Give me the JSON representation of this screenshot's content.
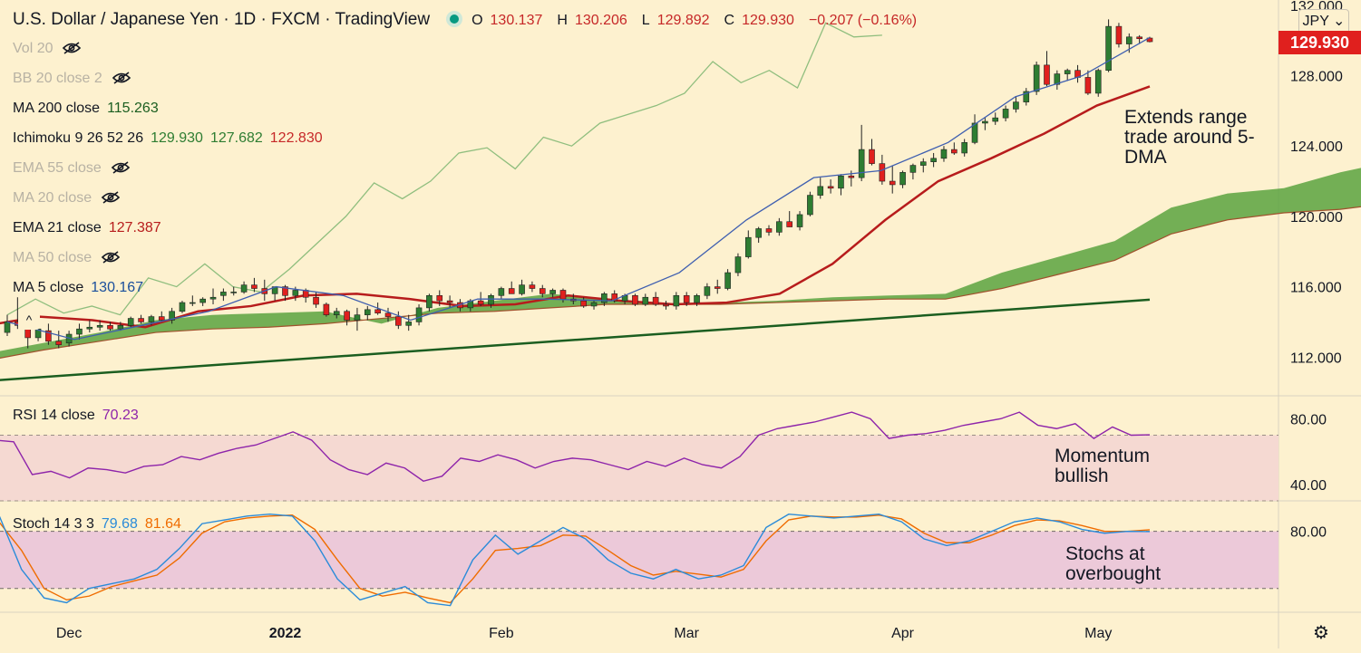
{
  "header": {
    "symbol": "U.S. Dollar / Japanese Yen · 1D · FXCM · TradingView",
    "open_label": "O",
    "open": "130.137",
    "high_label": "H",
    "high": "130.206",
    "low_label": "L",
    "low": "129.892",
    "close_label": "C",
    "close": "129.930",
    "change": "−0.207 (−0.16%)"
  },
  "currency_selector": "JPY",
  "last_price_badge": "129.930",
  "legend": [
    {
      "label": "Vol 20",
      "value": "",
      "hidden": true
    },
    {
      "label": "BB 20 close 2",
      "value": "",
      "hidden": true
    },
    {
      "label": "MA 200 close",
      "value": "115.263",
      "hidden": false,
      "color": "#1b5e20"
    },
    {
      "label": "Ichimoku 9 26 52 26",
      "value": "129.930",
      "value2": "127.682",
      "value3": "122.830",
      "hidden": false,
      "color": "#2e7d32",
      "color3": "#c62828"
    },
    {
      "label": "EMA 55 close",
      "value": "",
      "hidden": true
    },
    {
      "label": "MA 20 close",
      "value": "",
      "hidden": true
    },
    {
      "label": "EMA 21 close",
      "value": "127.387",
      "hidden": false,
      "color": "#b71c1c"
    },
    {
      "label": "MA 50 close",
      "value": "",
      "hidden": true
    },
    {
      "label": "MA 5 close",
      "value": "130.167",
      "hidden": false,
      "color": "#1a4f9c"
    }
  ],
  "annotations": {
    "price": "Extends range trade around 5-DMA",
    "rsi": "Momentum bullish",
    "stoch": "Stochs at overbought"
  },
  "rsi_legend": {
    "label": "RSI 14 close",
    "value": "70.23"
  },
  "stoch_legend": {
    "label": "Stoch 14 3 3",
    "k": "79.68",
    "d": "81.64"
  },
  "colors": {
    "background": "#fdf1cf",
    "bull": "#2e7d32",
    "bear": "#e0201e",
    "ma200": "#1b5e20",
    "ema21": "#b71c1c",
    "ma5": "#3f5fb0",
    "cloud": "#5ba33f",
    "chikou": "#8fbe7e",
    "rsi": "#8e24aa",
    "rsi_band": "#f5d9d2",
    "stoch_band": "#ecc9d9",
    "stoch_k": "#2a8bd9",
    "stoch_d": "#ef6c00"
  },
  "chart_data": {
    "type": "candlestick",
    "price_axis": {
      "ticks": [
        "112.000",
        "116.000",
        "120.000",
        "124.000",
        "128.000",
        "132.000"
      ],
      "ylim": [
        109.8,
        132.3
      ]
    },
    "rsi_axis": {
      "ticks": [
        "40.00",
        "80.00"
      ],
      "ylim": [
        30,
        94
      ],
      "band": [
        30,
        70
      ]
    },
    "stoch_axis": {
      "ticks": [
        "80.00"
      ],
      "ylim": [
        -5,
        112
      ],
      "band": [
        20,
        80
      ]
    },
    "time_axis": {
      "labels": [
        "Dec",
        "2022",
        "Feb",
        "Mar",
        "Apr",
        "May"
      ],
      "label_indices": [
        6,
        27,
        48,
        66,
        87,
        106
      ]
    },
    "candles": [
      [
        113.4,
        114.4,
        113.2,
        114.0
      ],
      [
        114.0,
        115.4,
        113.6,
        113.8
      ],
      [
        113.6,
        114.6,
        112.5,
        113.1
      ],
      [
        113.1,
        114.0,
        112.9,
        113.6
      ],
      [
        113.5,
        113.9,
        112.7,
        112.9
      ],
      [
        112.9,
        113.5,
        112.5,
        112.7
      ],
      [
        112.8,
        113.5,
        112.6,
        113.3
      ],
      [
        113.3,
        113.9,
        113.0,
        113.6
      ],
      [
        113.6,
        114.1,
        113.4,
        113.7
      ],
      [
        113.7,
        114.1,
        113.5,
        113.8
      ],
      [
        113.8,
        114.0,
        113.5,
        113.6
      ],
      [
        113.6,
        114.0,
        113.5,
        113.8
      ],
      [
        113.8,
        114.3,
        113.7,
        114.2
      ],
      [
        114.2,
        114.4,
        113.9,
        114.0
      ],
      [
        114.0,
        114.4,
        113.8,
        114.3
      ],
      [
        114.3,
        114.6,
        114.0,
        114.1
      ],
      [
        114.1,
        114.8,
        113.9,
        114.6
      ],
      [
        114.6,
        115.2,
        114.5,
        115.1
      ],
      [
        115.1,
        115.5,
        114.9,
        115.1
      ],
      [
        115.1,
        115.4,
        114.9,
        115.3
      ],
      [
        115.3,
        115.9,
        115.0,
        115.4
      ],
      [
        115.5,
        115.9,
        115.2,
        115.7
      ],
      [
        115.7,
        116.0,
        115.5,
        115.7
      ],
      [
        115.7,
        116.3,
        115.6,
        116.1
      ],
      [
        116.1,
        116.5,
        115.7,
        115.9
      ],
      [
        115.9,
        116.4,
        115.2,
        115.6
      ],
      [
        115.6,
        116.0,
        115.2,
        116.0
      ],
      [
        116.0,
        116.1,
        115.2,
        115.5
      ],
      [
        115.5,
        116.0,
        115.2,
        115.8
      ],
      [
        115.8,
        115.9,
        115.1,
        115.4
      ],
      [
        115.4,
        115.7,
        114.8,
        115.0
      ],
      [
        115.0,
        115.1,
        114.3,
        114.4
      ],
      [
        114.4,
        114.8,
        114.2,
        114.6
      ],
      [
        114.6,
        114.7,
        113.8,
        114.1
      ],
      [
        114.1,
        114.8,
        113.5,
        114.4
      ],
      [
        114.4,
        114.9,
        114.1,
        114.7
      ],
      [
        114.7,
        115.1,
        114.4,
        114.5
      ],
      [
        114.5,
        114.8,
        114.0,
        114.3
      ],
      [
        114.3,
        114.6,
        113.6,
        113.8
      ],
      [
        113.8,
        114.4,
        113.5,
        114.0
      ],
      [
        114.0,
        115.0,
        113.8,
        114.8
      ],
      [
        114.8,
        115.6,
        114.6,
        115.5
      ],
      [
        115.5,
        115.8,
        114.9,
        115.2
      ],
      [
        115.2,
        115.5,
        114.8,
        115.1
      ],
      [
        115.1,
        115.3,
        114.6,
        114.8
      ],
      [
        114.8,
        115.3,
        114.6,
        115.2
      ],
      [
        115.2,
        115.7,
        114.9,
        115.0
      ],
      [
        115.0,
        115.6,
        114.8,
        115.5
      ],
      [
        115.5,
        116.0,
        115.3,
        115.9
      ],
      [
        115.9,
        116.3,
        115.6,
        115.6
      ],
      [
        115.6,
        116.4,
        115.5,
        116.1
      ],
      [
        116.1,
        116.3,
        115.7,
        115.9
      ],
      [
        115.9,
        116.1,
        115.4,
        115.6
      ],
      [
        115.6,
        115.9,
        115.4,
        115.8
      ],
      [
        115.8,
        115.9,
        115.1,
        115.3
      ],
      [
        115.3,
        115.6,
        115.0,
        115.2
      ],
      [
        115.2,
        115.4,
        114.8,
        114.9
      ],
      [
        114.9,
        115.2,
        114.7,
        115.1
      ],
      [
        115.1,
        115.7,
        114.9,
        115.6
      ],
      [
        115.6,
        115.8,
        115.1,
        115.2
      ],
      [
        115.2,
        115.6,
        115.0,
        115.5
      ],
      [
        115.5,
        115.6,
        114.9,
        115.0
      ],
      [
        115.0,
        115.6,
        114.9,
        115.4
      ],
      [
        115.4,
        115.7,
        114.9,
        115.0
      ],
      [
        115.0,
        115.2,
        114.7,
        114.9
      ],
      [
        114.9,
        115.7,
        114.7,
        115.5
      ],
      [
        115.5,
        115.7,
        114.9,
        115.1
      ],
      [
        115.1,
        115.6,
        114.9,
        115.5
      ],
      [
        115.5,
        116.2,
        115.3,
        116.0
      ],
      [
        116.0,
        116.4,
        115.6,
        115.9
      ],
      [
        115.9,
        117.0,
        115.8,
        116.8
      ],
      [
        116.8,
        117.9,
        116.6,
        117.7
      ],
      [
        117.7,
        119.2,
        117.6,
        118.8
      ],
      [
        118.8,
        119.4,
        118.5,
        119.3
      ],
      [
        119.3,
        119.5,
        118.9,
        119.1
      ],
      [
        119.1,
        119.9,
        118.9,
        119.7
      ],
      [
        119.7,
        120.3,
        119.4,
        119.4
      ],
      [
        119.4,
        120.3,
        119.2,
        120.1
      ],
      [
        120.1,
        121.4,
        120.0,
        121.2
      ],
      [
        121.2,
        122.2,
        121.0,
        121.7
      ],
      [
        121.7,
        122.1,
        121.3,
        121.6
      ],
      [
        121.6,
        122.4,
        121.2,
        122.3
      ],
      [
        122.3,
        122.6,
        121.7,
        122.2
      ],
      [
        122.2,
        125.2,
        122.0,
        123.8
      ],
      [
        123.8,
        124.4,
        122.9,
        123.0
      ],
      [
        123.0,
        123.5,
        121.8,
        122.0
      ],
      [
        122.0,
        122.9,
        121.3,
        121.8
      ],
      [
        121.8,
        122.6,
        121.6,
        122.5
      ],
      [
        122.5,
        123.0,
        122.1,
        122.9
      ],
      [
        122.9,
        123.3,
        122.5,
        123.1
      ],
      [
        123.1,
        123.6,
        122.8,
        123.3
      ],
      [
        123.3,
        124.0,
        123.1,
        123.8
      ],
      [
        123.8,
        124.2,
        123.5,
        123.6
      ],
      [
        123.6,
        124.4,
        123.4,
        124.2
      ],
      [
        124.2,
        125.8,
        124.1,
        125.3
      ],
      [
        125.3,
        125.6,
        124.9,
        125.4
      ],
      [
        125.4,
        125.9,
        125.2,
        125.6
      ],
      [
        125.6,
        126.3,
        125.4,
        126.1
      ],
      [
        126.1,
        126.8,
        125.9,
        126.5
      ],
      [
        126.5,
        127.3,
        126.3,
        127.1
      ],
      [
        127.1,
        128.8,
        126.9,
        128.6
      ],
      [
        128.6,
        129.4,
        127.4,
        127.5
      ],
      [
        127.5,
        128.3,
        127.2,
        128.1
      ],
      [
        128.1,
        128.4,
        127.7,
        128.3
      ],
      [
        128.3,
        128.6,
        127.6,
        127.9
      ],
      [
        127.9,
        128.3,
        126.9,
        127.0
      ],
      [
        127.0,
        128.4,
        126.8,
        128.3
      ],
      [
        128.3,
        131.2,
        128.2,
        130.8
      ],
      [
        130.8,
        131.0,
        129.6,
        129.8
      ],
      [
        129.8,
        130.4,
        129.3,
        130.2
      ],
      [
        130.2,
        130.3,
        129.8,
        130.1
      ],
      [
        130.137,
        130.206,
        129.892,
        129.93
      ]
    ],
    "ma200": [
      110.6,
      115.263
    ],
    "ema21": [
      113.8,
      114.3,
      114.1,
      113.7,
      114.6,
      114.9,
      115.5,
      115.6,
      115.3,
      114.9,
      115.0,
      115.5,
      115.2,
      115.0,
      115.1,
      115.6,
      117.3,
      119.8,
      122.0,
      123.3,
      124.7,
      126.3,
      127.387
    ],
    "ma5": [
      114.0,
      113.0,
      113.8,
      114.6,
      116.0,
      115.5,
      114.1,
      115.3,
      115.3,
      115.2,
      116.8,
      119.8,
      122.2,
      122.6,
      124.2,
      126.8,
      128.0,
      130.167
    ],
    "chikou": [
      114.4,
      115.3,
      114.5,
      114.9,
      114.4,
      116.5,
      116.0,
      117.3,
      116.0,
      115.7,
      117.0,
      118.5,
      120.0,
      121.9,
      121.0,
      122.0,
      123.6,
      123.9,
      122.7,
      124.5,
      124.0,
      125.3,
      125.8,
      126.3,
      127.0,
      128.8,
      127.6,
      128.3,
      127.3,
      131.0,
      130.2,
      130.3
    ],
    "cloud_span_a": [
      112.2,
      112.8,
      113.4,
      114.1,
      114.4,
      114.5,
      114.6,
      113.9,
      114.8,
      115.2,
      115.6,
      115.3,
      115.0,
      115.1,
      115.2,
      115.4,
      115.5,
      115.6,
      116.8,
      117.7,
      118.6,
      120.5,
      121.3,
      121.6,
      122.5,
      123.2
    ],
    "cloud_span_b": [
      111.8,
      112.4,
      112.9,
      113.4,
      113.6,
      113.7,
      113.9,
      114.2,
      114.5,
      114.6,
      114.8,
      115.0,
      115.0,
      115.0,
      115.1,
      115.2,
      115.3,
      115.3,
      115.9,
      116.7,
      117.5,
      119.0,
      119.8,
      120.2,
      120.4,
      120.8
    ],
    "rsi": [
      63,
      67,
      66,
      46,
      48,
      44,
      50,
      49,
      47,
      51,
      52,
      57,
      55,
      59,
      62,
      64,
      68,
      72,
      67,
      55,
      49,
      46,
      53,
      50,
      42,
      45,
      56,
      54,
      58,
      55,
      50,
      54,
      56,
      55,
      52,
      49,
      54,
      51,
      56,
      52,
      50,
      57,
      70,
      74,
      76,
      78,
      81,
      84,
      80,
      68,
      70,
      71,
      73,
      76,
      78,
      80,
      84,
      76,
      74,
      77,
      68,
      75,
      70,
      70.23
    ],
    "stoch_k": [
      85,
      97,
      40,
      10,
      5,
      20,
      25,
      30,
      40,
      62,
      88,
      92,
      96,
      98,
      96,
      70,
      30,
      8,
      15,
      22,
      5,
      2,
      50,
      76,
      56,
      70,
      84,
      72,
      50,
      36,
      30,
      40,
      30,
      34,
      44,
      84,
      98,
      96,
      94,
      96,
      98,
      90,
      72,
      65,
      70,
      80,
      90,
      94,
      90,
      82,
      78,
      80,
      79.68
    ],
    "stoch_d": [
      82,
      90,
      60,
      20,
      8,
      12,
      22,
      28,
      34,
      52,
      78,
      90,
      94,
      96,
      97,
      82,
      50,
      20,
      12,
      16,
      10,
      5,
      30,
      60,
      62,
      65,
      76,
      75,
      60,
      44,
      34,
      38,
      35,
      32,
      40,
      70,
      92,
      96,
      95,
      95,
      97,
      93,
      78,
      68,
      68,
      76,
      86,
      92,
      91,
      86,
      80,
      80,
      81.64
    ]
  }
}
